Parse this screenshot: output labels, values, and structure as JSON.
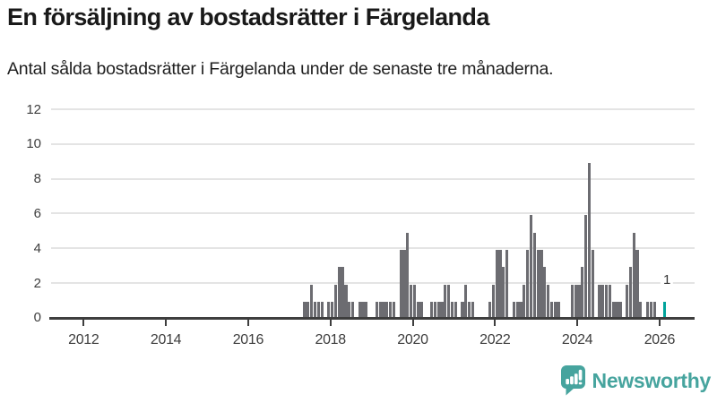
{
  "header": {
    "title": "En försäljning av bostadsrätter i Färgelanda",
    "subtitle": "Antal sålda bostadsrätter i Färgelanda under de senaste tre månaderna."
  },
  "branding": {
    "name": "Newsworthy",
    "icon": "newsworthy-bar-chart-bubble-icon"
  },
  "colors": {
    "bar": "#6c6c71",
    "highlight": "#00a39b",
    "grid": "#e4e4e4",
    "axis": "#3e3e3e",
    "tick_label": "#3d3d3d",
    "title": "#191919",
    "brand": "#46a49e",
    "annotation": "#333333",
    "background": "#ffffff"
  },
  "chart_data": {
    "type": "bar",
    "title": "En försäljning av bostadsrätter i Färgelanda",
    "subtitle": "Antal sålda bostadsrätter i Färgelanda under de senaste tre månaderna.",
    "xlabel": "",
    "ylabel": "",
    "grid": true,
    "legend_position": "none",
    "ylim": [
      0,
      12
    ],
    "y_ticks": [
      0,
      2,
      4,
      6,
      8,
      10,
      12
    ],
    "x_tick_labels": [
      "2012",
      "2014",
      "2016",
      "2018",
      "2020",
      "2022",
      "2024",
      "2026"
    ],
    "x_domain": "monthly bars from 2011 to late 2026, first non-zero bar 2017-05",
    "bars": [
      [
        2017,
        5,
        1
      ],
      [
        2017,
        6,
        1
      ],
      [
        2017,
        7,
        2
      ],
      [
        2017,
        8,
        1
      ],
      [
        2017,
        9,
        1
      ],
      [
        2017,
        10,
        1
      ],
      [
        2017,
        12,
        1
      ],
      [
        2018,
        1,
        1
      ],
      [
        2018,
        2,
        2
      ],
      [
        2018,
        3,
        3
      ],
      [
        2018,
        4,
        3
      ],
      [
        2018,
        5,
        2
      ],
      [
        2018,
        6,
        1
      ],
      [
        2018,
        7,
        1
      ],
      [
        2018,
        9,
        1
      ],
      [
        2018,
        10,
        1
      ],
      [
        2018,
        11,
        1
      ],
      [
        2019,
        2,
        1
      ],
      [
        2019,
        3,
        1
      ],
      [
        2019,
        4,
        1
      ],
      [
        2019,
        5,
        1
      ],
      [
        2019,
        6,
        1
      ],
      [
        2019,
        7,
        1
      ],
      [
        2019,
        9,
        4
      ],
      [
        2019,
        10,
        4
      ],
      [
        2019,
        11,
        5
      ],
      [
        2019,
        12,
        2
      ],
      [
        2020,
        1,
        2
      ],
      [
        2020,
        2,
        1
      ],
      [
        2020,
        3,
        1
      ],
      [
        2020,
        6,
        1
      ],
      [
        2020,
        7,
        1
      ],
      [
        2020,
        8,
        1
      ],
      [
        2020,
        9,
        1
      ],
      [
        2020,
        10,
        2
      ],
      [
        2020,
        11,
        2
      ],
      [
        2020,
        12,
        1
      ],
      [
        2021,
        1,
        1
      ],
      [
        2021,
        3,
        1
      ],
      [
        2021,
        4,
        2
      ],
      [
        2021,
        5,
        1
      ],
      [
        2021,
        6,
        1
      ],
      [
        2021,
        11,
        1
      ],
      [
        2021,
        12,
        2
      ],
      [
        2022,
        1,
        4
      ],
      [
        2022,
        2,
        4
      ],
      [
        2022,
        3,
        3
      ],
      [
        2022,
        4,
        4
      ],
      [
        2022,
        6,
        1
      ],
      [
        2022,
        7,
        1
      ],
      [
        2022,
        8,
        1
      ],
      [
        2022,
        9,
        2
      ],
      [
        2022,
        10,
        4
      ],
      [
        2022,
        11,
        6
      ],
      [
        2022,
        12,
        5
      ],
      [
        2023,
        1,
        4
      ],
      [
        2023,
        2,
        4
      ],
      [
        2023,
        3,
        3
      ],
      [
        2023,
        4,
        2
      ],
      [
        2023,
        5,
        1
      ],
      [
        2023,
        6,
        1
      ],
      [
        2023,
        7,
        1
      ],
      [
        2023,
        11,
        2
      ],
      [
        2023,
        12,
        2
      ],
      [
        2024,
        1,
        2
      ],
      [
        2024,
        2,
        3
      ],
      [
        2024,
        3,
        6
      ],
      [
        2024,
        4,
        9
      ],
      [
        2024,
        5,
        4
      ],
      [
        2024,
        7,
        2
      ],
      [
        2024,
        8,
        2
      ],
      [
        2024,
        9,
        2
      ],
      [
        2024,
        10,
        2
      ],
      [
        2024,
        11,
        1
      ],
      [
        2024,
        12,
        1
      ],
      [
        2025,
        1,
        1
      ],
      [
        2025,
        3,
        2
      ],
      [
        2025,
        4,
        3
      ],
      [
        2025,
        5,
        5
      ],
      [
        2025,
        6,
        4
      ],
      [
        2025,
        7,
        1
      ],
      [
        2025,
        9,
        1
      ],
      [
        2025,
        10,
        1
      ],
      [
        2025,
        11,
        1
      ]
    ],
    "highlight": {
      "year": 2026,
      "month": 2,
      "value": 1,
      "label": "1"
    }
  }
}
